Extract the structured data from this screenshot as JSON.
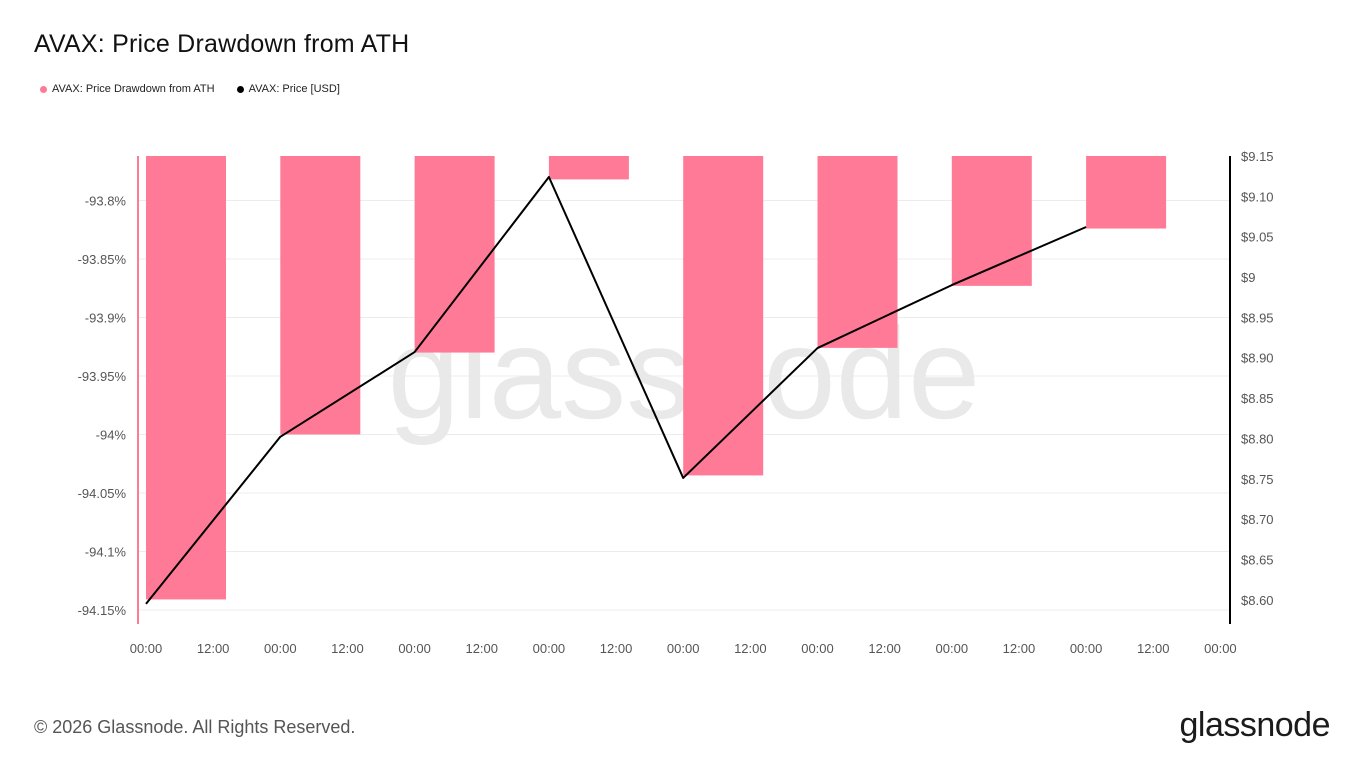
{
  "colors": {
    "bar": "#ff7a96",
    "line": "#000000",
    "grid": "#ececec",
    "axis_left": "#ff7a96",
    "axis_right": "#000000"
  },
  "watermark": "glassnode",
  "footer": {
    "copyright": "© 2026 Glassnode. All Rights Reserved.",
    "logo": "glassnode"
  },
  "chart_data": {
    "type": "bar",
    "title": "AVAX: Price Drawdown from ATH",
    "legend": [
      {
        "label": "AVAX: Price Drawdown from ATH",
        "color": "#ff7a96"
      },
      {
        "label": "AVAX: Price [USD]",
        "color": "#000000"
      }
    ],
    "x_ticks": [
      "00:00",
      "12:00",
      "00:00",
      "12:00",
      "00:00",
      "12:00",
      "00:00",
      "12:00",
      "00:00",
      "12:00",
      "00:00",
      "12:00",
      "00:00",
      "12:00",
      "00:00",
      "12:00",
      "00:00"
    ],
    "y_left": {
      "ticks": [
        -93.8,
        -93.85,
        -93.9,
        -93.95,
        -94,
        -94.05,
        -94.1,
        -94.15
      ],
      "tick_labels": [
        "-93.8%",
        "-93.85%",
        "-93.9%",
        "-93.95%",
        "-94%",
        "-94.05%",
        "-94.1%",
        "-94.15%"
      ],
      "range": [
        -94.162,
        -93.762
      ]
    },
    "y_right": {
      "ticks": [
        9.15,
        9.1,
        9.05,
        9.0,
        8.95,
        8.9,
        8.85,
        8.8,
        8.75,
        8.7,
        8.65,
        8.6
      ],
      "tick_labels": [
        "$9.15",
        "$9.10",
        "$9.05",
        "$9",
        "$8.95",
        "$8.90",
        "$8.85",
        "$8.80",
        "$8.75",
        "$8.70",
        "$8.65",
        "$8.60"
      ],
      "range": [
        8.57,
        9.15
      ]
    },
    "series": [
      {
        "name": "AVAX: Price Drawdown from ATH",
        "type": "bar",
        "x": [
          0,
          1,
          2,
          3,
          4,
          5,
          6,
          7
        ],
        "values": [
          -94.141,
          -94.0,
          -93.93,
          -93.782,
          -94.035,
          -93.926,
          -93.873,
          -93.824
        ]
      },
      {
        "name": "AVAX: Price [USD]",
        "type": "line",
        "x": [
          0,
          1,
          2,
          3,
          4,
          5,
          6,
          7
        ],
        "values": [
          8.595,
          8.802,
          8.907,
          9.124,
          8.751,
          8.912,
          8.99,
          9.062
        ]
      }
    ]
  }
}
